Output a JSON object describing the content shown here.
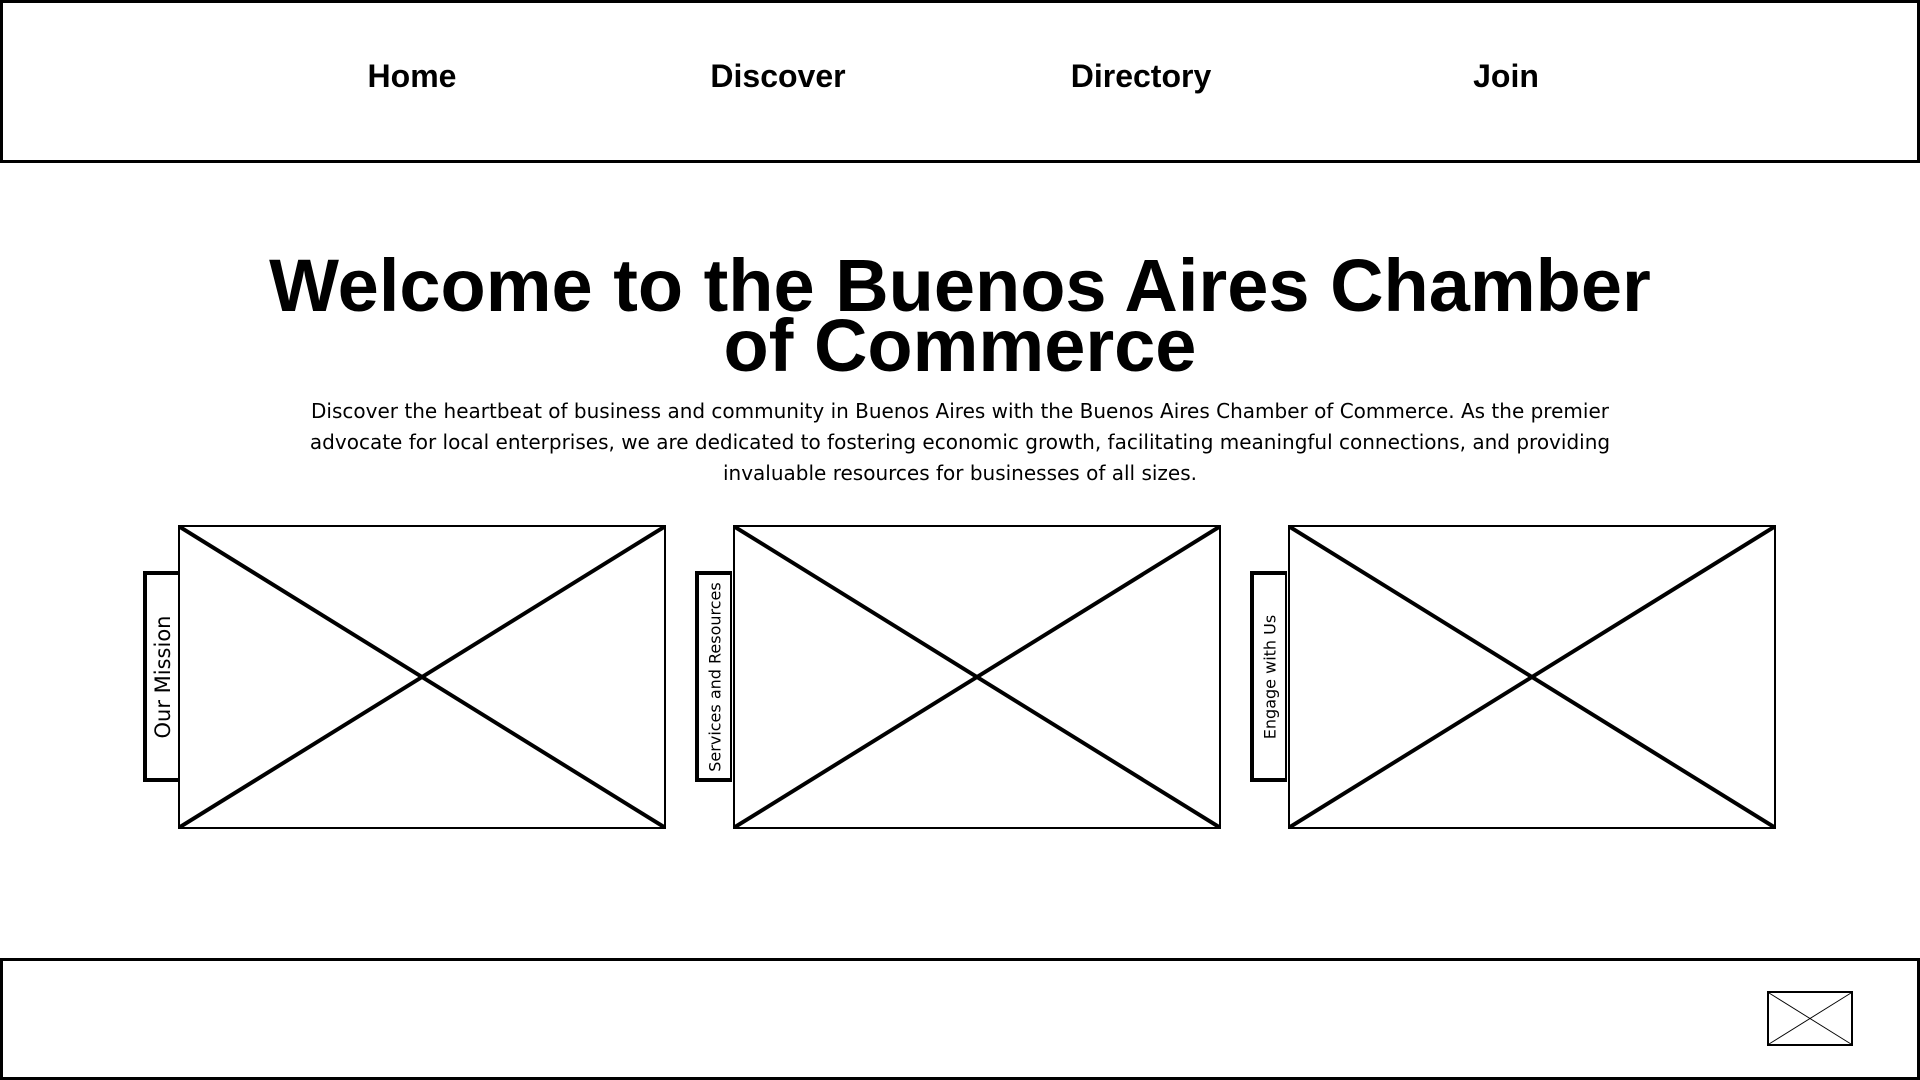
{
  "nav": {
    "items": [
      {
        "label": "Home"
      },
      {
        "label": "Discover"
      },
      {
        "label": "Directory"
      },
      {
        "label": "Join"
      }
    ]
  },
  "hero": {
    "title": "Welcome to the Buenos Aires Chamber of Commerce",
    "description": "Discover the heartbeat of business and community in Buenos Aires with the Buenos Aires Chamber of Commerce. As the premier advocate for local enterprises, we are dedicated to fostering economic growth, facilitating meaningful connections, and providing invaluable resources for businesses of all sizes."
  },
  "cards": [
    {
      "tab_label": "Our Mission",
      "image_icon": "image-placeholder-icon"
    },
    {
      "tab_label": "Services and Resources",
      "image_icon": "image-placeholder-icon"
    },
    {
      "tab_label": "Engage with Us",
      "image_icon": "image-placeholder-icon"
    }
  ],
  "footer": {
    "logo_icon": "image-placeholder-icon"
  },
  "colors": {
    "stroke": "#000000",
    "background": "#ffffff"
  }
}
